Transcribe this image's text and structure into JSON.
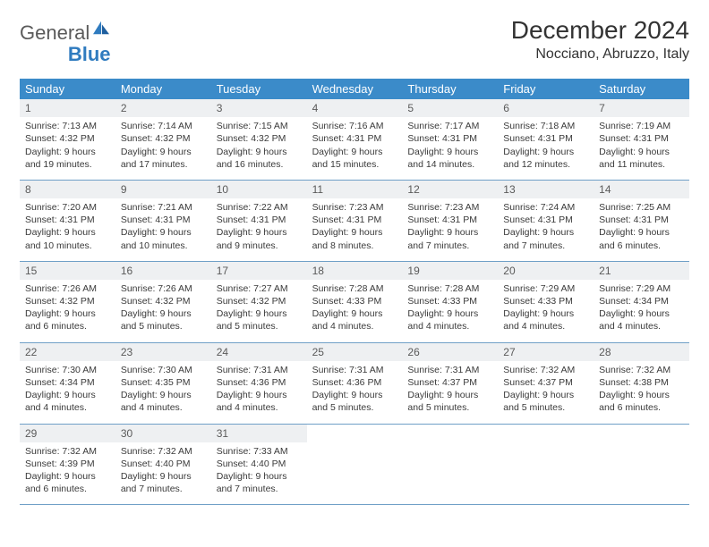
{
  "brand": {
    "part1": "General",
    "part2": "Blue"
  },
  "title": "December 2024",
  "location": "Nocciano, Abruzzo, Italy",
  "colors": {
    "header_bg": "#3b8bc9",
    "header_text": "#ffffff",
    "daynum_bg": "#eef0f2",
    "row_divider": "#6f9fc7",
    "body_text": "#3a3a3a",
    "logo_blue": "#2f7bbf"
  },
  "typography": {
    "title_fontsize": 28,
    "location_fontsize": 16,
    "weekday_fontsize": 13,
    "daynum_fontsize": 12,
    "body_fontsize": 10.5
  },
  "weekdays": [
    "Sunday",
    "Monday",
    "Tuesday",
    "Wednesday",
    "Thursday",
    "Friday",
    "Saturday"
  ],
  "weeks": [
    [
      {
        "n": "1",
        "sr": "7:13 AM",
        "ss": "4:32 PM",
        "dl": "9 hours and 19 minutes."
      },
      {
        "n": "2",
        "sr": "7:14 AM",
        "ss": "4:32 PM",
        "dl": "9 hours and 17 minutes."
      },
      {
        "n": "3",
        "sr": "7:15 AM",
        "ss": "4:32 PM",
        "dl": "9 hours and 16 minutes."
      },
      {
        "n": "4",
        "sr": "7:16 AM",
        "ss": "4:31 PM",
        "dl": "9 hours and 15 minutes."
      },
      {
        "n": "5",
        "sr": "7:17 AM",
        "ss": "4:31 PM",
        "dl": "9 hours and 14 minutes."
      },
      {
        "n": "6",
        "sr": "7:18 AM",
        "ss": "4:31 PM",
        "dl": "9 hours and 12 minutes."
      },
      {
        "n": "7",
        "sr": "7:19 AM",
        "ss": "4:31 PM",
        "dl": "9 hours and 11 minutes."
      }
    ],
    [
      {
        "n": "8",
        "sr": "7:20 AM",
        "ss": "4:31 PM",
        "dl": "9 hours and 10 minutes."
      },
      {
        "n": "9",
        "sr": "7:21 AM",
        "ss": "4:31 PM",
        "dl": "9 hours and 10 minutes."
      },
      {
        "n": "10",
        "sr": "7:22 AM",
        "ss": "4:31 PM",
        "dl": "9 hours and 9 minutes."
      },
      {
        "n": "11",
        "sr": "7:23 AM",
        "ss": "4:31 PM",
        "dl": "9 hours and 8 minutes."
      },
      {
        "n": "12",
        "sr": "7:23 AM",
        "ss": "4:31 PM",
        "dl": "9 hours and 7 minutes."
      },
      {
        "n": "13",
        "sr": "7:24 AM",
        "ss": "4:31 PM",
        "dl": "9 hours and 7 minutes."
      },
      {
        "n": "14",
        "sr": "7:25 AM",
        "ss": "4:31 PM",
        "dl": "9 hours and 6 minutes."
      }
    ],
    [
      {
        "n": "15",
        "sr": "7:26 AM",
        "ss": "4:32 PM",
        "dl": "9 hours and 6 minutes."
      },
      {
        "n": "16",
        "sr": "7:26 AM",
        "ss": "4:32 PM",
        "dl": "9 hours and 5 minutes."
      },
      {
        "n": "17",
        "sr": "7:27 AM",
        "ss": "4:32 PM",
        "dl": "9 hours and 5 minutes."
      },
      {
        "n": "18",
        "sr": "7:28 AM",
        "ss": "4:33 PM",
        "dl": "9 hours and 4 minutes."
      },
      {
        "n": "19",
        "sr": "7:28 AM",
        "ss": "4:33 PM",
        "dl": "9 hours and 4 minutes."
      },
      {
        "n": "20",
        "sr": "7:29 AM",
        "ss": "4:33 PM",
        "dl": "9 hours and 4 minutes."
      },
      {
        "n": "21",
        "sr": "7:29 AM",
        "ss": "4:34 PM",
        "dl": "9 hours and 4 minutes."
      }
    ],
    [
      {
        "n": "22",
        "sr": "7:30 AM",
        "ss": "4:34 PM",
        "dl": "9 hours and 4 minutes."
      },
      {
        "n": "23",
        "sr": "7:30 AM",
        "ss": "4:35 PM",
        "dl": "9 hours and 4 minutes."
      },
      {
        "n": "24",
        "sr": "7:31 AM",
        "ss": "4:36 PM",
        "dl": "9 hours and 4 minutes."
      },
      {
        "n": "25",
        "sr": "7:31 AM",
        "ss": "4:36 PM",
        "dl": "9 hours and 5 minutes."
      },
      {
        "n": "26",
        "sr": "7:31 AM",
        "ss": "4:37 PM",
        "dl": "9 hours and 5 minutes."
      },
      {
        "n": "27",
        "sr": "7:32 AM",
        "ss": "4:37 PM",
        "dl": "9 hours and 5 minutes."
      },
      {
        "n": "28",
        "sr": "7:32 AM",
        "ss": "4:38 PM",
        "dl": "9 hours and 6 minutes."
      }
    ],
    [
      {
        "n": "29",
        "sr": "7:32 AM",
        "ss": "4:39 PM",
        "dl": "9 hours and 6 minutes."
      },
      {
        "n": "30",
        "sr": "7:32 AM",
        "ss": "4:40 PM",
        "dl": "9 hours and 7 minutes."
      },
      {
        "n": "31",
        "sr": "7:33 AM",
        "ss": "4:40 PM",
        "dl": "9 hours and 7 minutes."
      },
      null,
      null,
      null,
      null
    ]
  ],
  "labels": {
    "sunrise": "Sunrise:",
    "sunset": "Sunset:",
    "daylight": "Daylight:"
  }
}
